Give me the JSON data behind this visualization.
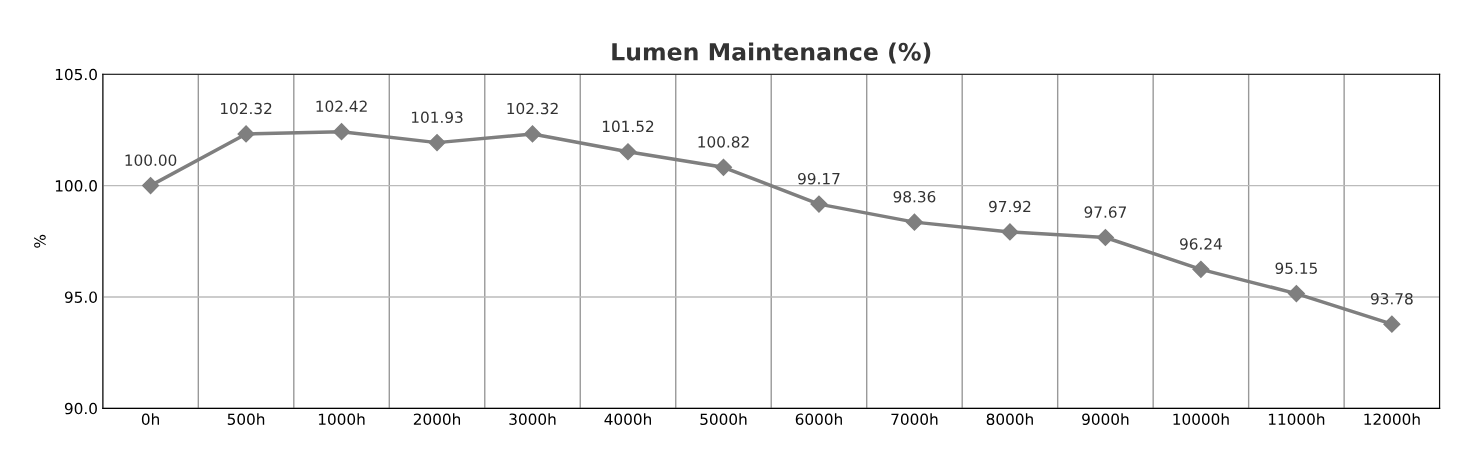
{
  "chart_data": {
    "type": "line",
    "title": "Lumen Maintenance (%)",
    "ylabel": "%",
    "categories": [
      "0h",
      "500h",
      "1000h",
      "2000h",
      "3000h",
      "4000h",
      "5000h",
      "6000h",
      "7000h",
      "8000h",
      "9000h",
      "10000h",
      "11000h",
      "12000h"
    ],
    "series": [
      {
        "color": "#7f7f7f",
        "values": [
          100.0,
          102.32,
          102.42,
          101.93,
          102.32,
          101.52,
          100.82,
          99.17,
          98.36,
          97.92,
          97.67,
          96.24,
          95.15,
          93.78
        ],
        "value_labels": [
          "100.00",
          "102.32",
          "102.42",
          "101.93",
          "102.32",
          "101.52",
          "100.82",
          "99.17",
          "98.36",
          "97.92",
          "97.67",
          "96.24",
          "95.15",
          "93.78"
        ]
      }
    ],
    "ylim": [
      90,
      105
    ],
    "yticks": [
      {
        "value": 90,
        "label": "90.0"
      },
      {
        "value": 95,
        "label": "95.0"
      },
      {
        "value": 100,
        "label": "100.0"
      },
      {
        "value": 105,
        "label": "105.0"
      }
    ],
    "grid": true,
    "marker": "diamond",
    "line_style": "solid",
    "legend": false
  }
}
